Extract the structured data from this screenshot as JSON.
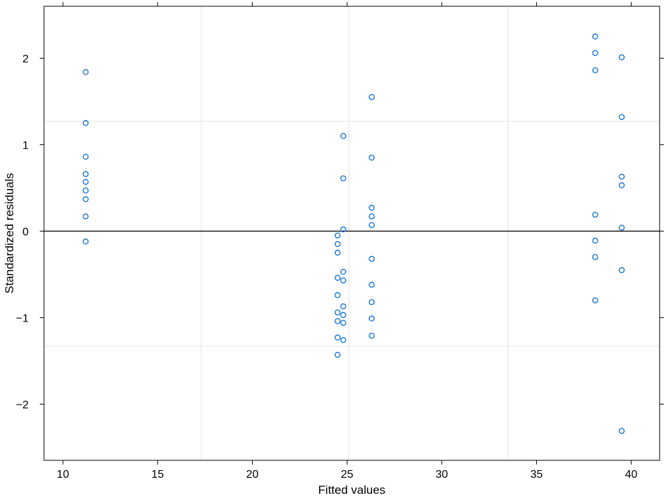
{
  "chart_data": {
    "type": "scatter",
    "title": "",
    "xlabel": "Fitted values",
    "ylabel": "Standardized residuals",
    "xlim": [
      9.0,
      41.5
    ],
    "ylim": [
      -2.65,
      2.6
    ],
    "x_ticks": [
      10,
      15,
      20,
      25,
      30,
      35,
      40
    ],
    "x_tick_labels": [
      "10",
      "15",
      "20",
      "25",
      "30",
      "35",
      "40"
    ],
    "y_ticks": [
      -2,
      -1,
      0,
      1,
      2
    ],
    "y_tick_labels": [
      "−2",
      "−1",
      "0",
      "1",
      "2"
    ],
    "grid": true,
    "vertical_reference_lines": [
      17.3,
      25.1,
      33.5
    ],
    "horizontal_reference_lines": [
      1.27,
      -1.33
    ],
    "zero_line": 0,
    "point_style": "open-circle",
    "colors": {
      "points": "#0a6fd6",
      "grid": "#e6e6e6",
      "zero_line": "#000000",
      "frame": "#000000"
    },
    "series": [
      {
        "points": [
          [
            11.2,
            1.84
          ],
          [
            11.2,
            1.25
          ],
          [
            11.2,
            0.86
          ],
          [
            11.2,
            0.66
          ],
          [
            11.2,
            0.57
          ],
          [
            11.2,
            0.47
          ],
          [
            11.2,
            0.37
          ],
          [
            11.2,
            0.17
          ],
          [
            11.2,
            -0.12
          ],
          [
            24.5,
            -0.05
          ],
          [
            24.5,
            -0.15
          ],
          [
            24.5,
            -0.25
          ],
          [
            24.5,
            -0.54
          ],
          [
            24.5,
            -0.74
          ],
          [
            24.5,
            -0.94
          ],
          [
            24.5,
            -1.04
          ],
          [
            24.5,
            -1.23
          ],
          [
            24.5,
            -1.43
          ],
          [
            24.8,
            1.1
          ],
          [
            24.8,
            0.61
          ],
          [
            24.8,
            0.02
          ],
          [
            24.8,
            -0.47
          ],
          [
            24.8,
            -0.57
          ],
          [
            24.8,
            -0.87
          ],
          [
            24.8,
            -0.97
          ],
          [
            24.8,
            -1.06
          ],
          [
            24.8,
            -1.26
          ],
          [
            26.3,
            1.55
          ],
          [
            26.3,
            0.85
          ],
          [
            26.3,
            0.27
          ],
          [
            26.3,
            0.17
          ],
          [
            26.3,
            0.07
          ],
          [
            26.3,
            -0.32
          ],
          [
            26.3,
            -0.62
          ],
          [
            26.3,
            -0.82
          ],
          [
            26.3,
            -1.01
          ],
          [
            26.3,
            -1.21
          ],
          [
            38.1,
            2.25
          ],
          [
            38.1,
            2.06
          ],
          [
            38.1,
            1.86
          ],
          [
            38.1,
            0.19
          ],
          [
            38.1,
            -0.11
          ],
          [
            38.1,
            -0.3
          ],
          [
            38.1,
            -0.8
          ],
          [
            39.5,
            2.01
          ],
          [
            39.5,
            1.32
          ],
          [
            39.5,
            0.63
          ],
          [
            39.5,
            0.53
          ],
          [
            39.5,
            0.04
          ],
          [
            39.5,
            -0.45
          ],
          [
            39.5,
            -2.31
          ]
        ]
      }
    ]
  }
}
